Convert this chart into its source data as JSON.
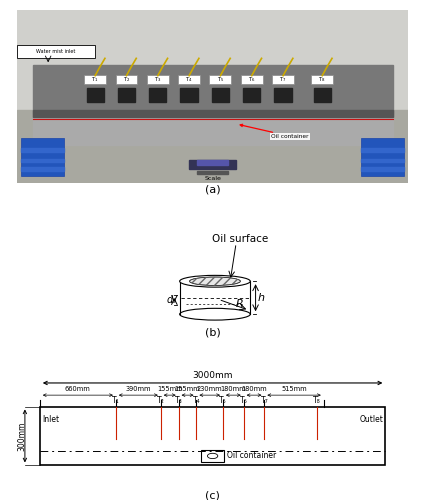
{
  "panel_a_label": "(a)",
  "panel_b_label": "(b)",
  "panel_c_label": "(c)",
  "oil_surface_label": "Oil surface",
  "h_label": "h",
  "d_label": "d₀",
  "R_label": "R",
  "total_length_label": "3000mm",
  "height_label": "300mm",
  "segments": [
    660,
    390,
    155,
    155,
    230,
    180,
    180,
    515
  ],
  "segment_labels": [
    "660mm",
    "390mm",
    "155mm",
    "155mm",
    "230mm",
    "180mm",
    "180mm",
    "515mm"
  ],
  "thermometers": [
    "T₁",
    "T₂",
    "T₃",
    "T₄",
    "T₅",
    "T₆",
    "T₇",
    "T₈"
  ],
  "inlet_label": "Inlet",
  "outlet_label": "Outlet",
  "oil_container_label": "Oil container",
  "water_mist_inlet": "Water mist inlet",
  "oil_container_arrow": "Oil container",
  "scale_label": "Scale",
  "bg_color": "#ffffff",
  "line_color": "#000000",
  "red_line_color": "#cc2200",
  "photo_bg": "#b8b8b8"
}
